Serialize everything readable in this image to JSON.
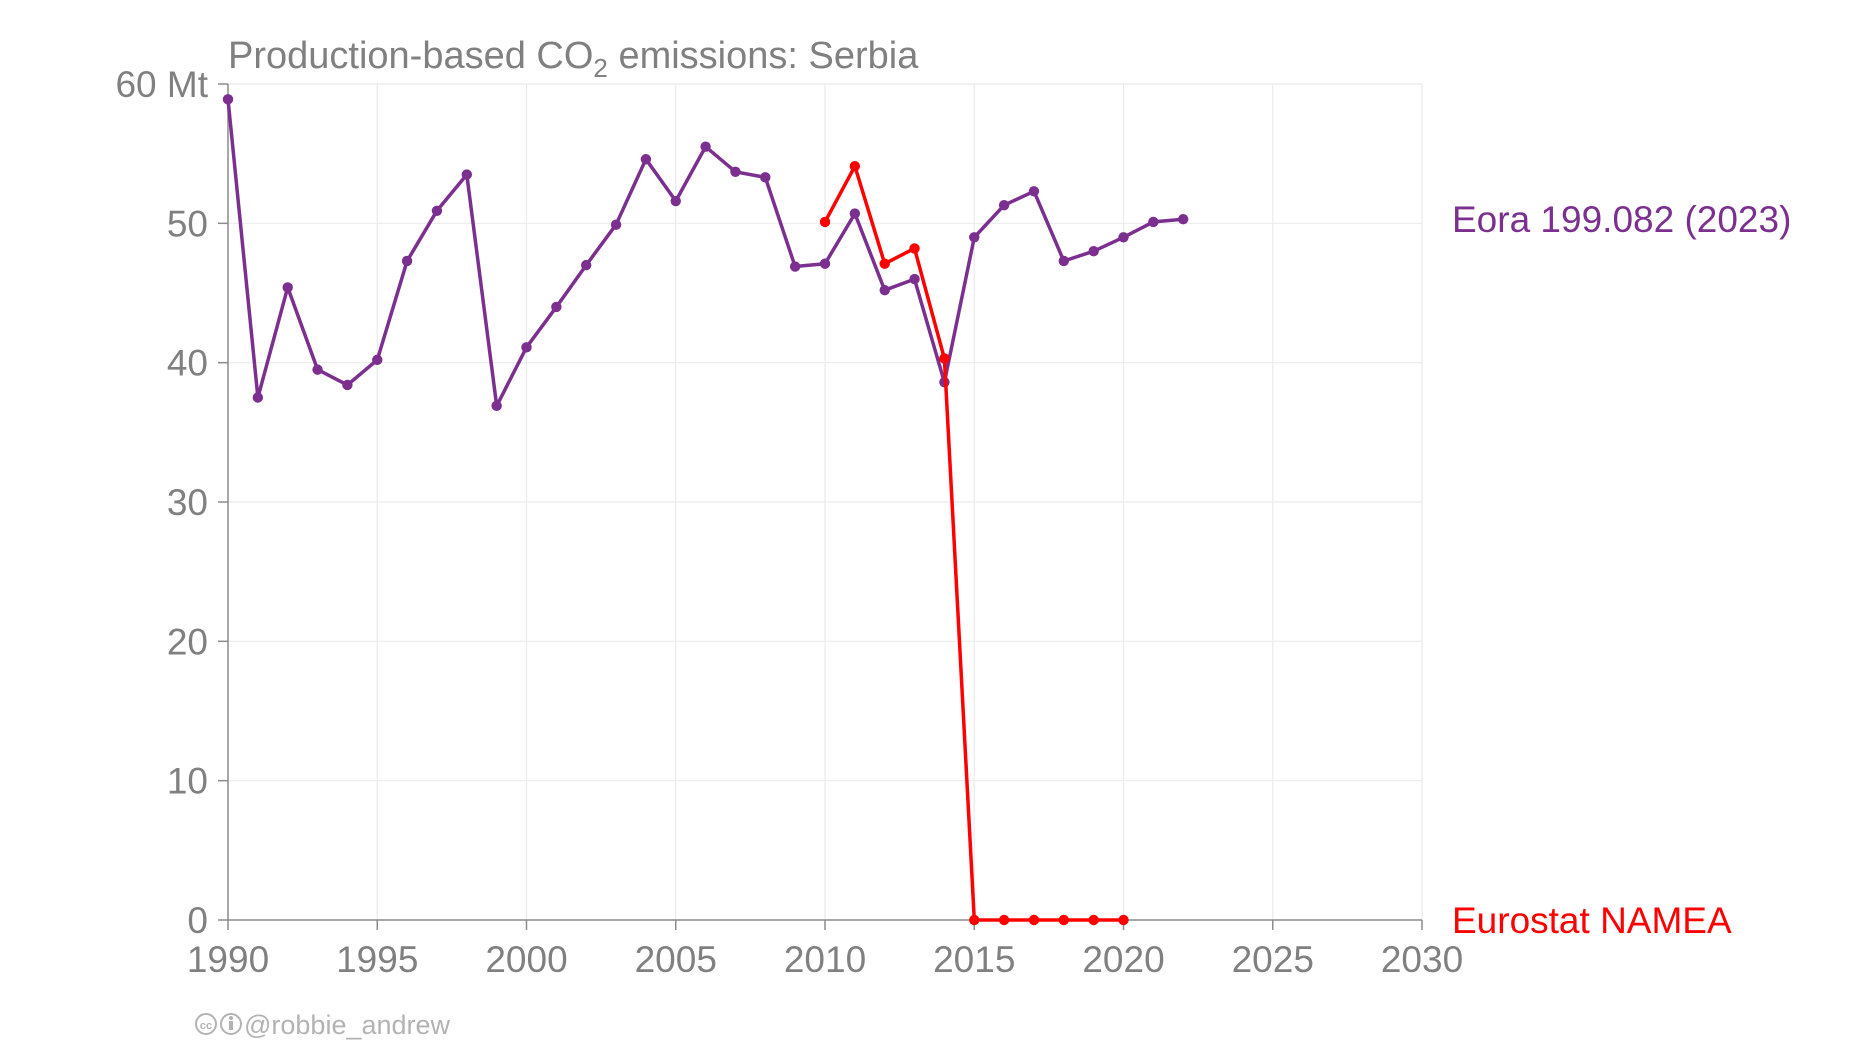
{
  "chart_data": {
    "type": "line",
    "title": "Production-based CO",
    "title_sub": "2",
    "title_rest": " emissions: Serbia",
    "y_unit_label": "60 Mt",
    "xlim": [
      1990,
      2030
    ],
    "ylim": [
      0,
      60
    ],
    "x_ticks": [
      1990,
      1995,
      2000,
      2005,
      2010,
      2015,
      2020,
      2025,
      2030
    ],
    "y_ticks": [
      0,
      10,
      20,
      30,
      40,
      50,
      60
    ],
    "y_tick_labels": [
      "0",
      "10",
      "20",
      "30",
      "40",
      "50",
      "60 Mt"
    ],
    "grid": true,
    "series": [
      {
        "name": "Eora 199.082 (2023)",
        "color": "#7b2f8e",
        "x": [
          1990,
          1991,
          1992,
          1993,
          1994,
          1995,
          1996,
          1997,
          1998,
          1999,
          2000,
          2001,
          2002,
          2003,
          2004,
          2005,
          2006,
          2007,
          2008,
          2009,
          2010,
          2011,
          2012,
          2013,
          2014,
          2015,
          2016,
          2017,
          2018,
          2019,
          2020,
          2021,
          2022
        ],
        "y": [
          58.9,
          37.5,
          45.4,
          39.5,
          38.4,
          40.2,
          47.3,
          50.9,
          53.5,
          36.9,
          41.1,
          44.0,
          47.0,
          49.9,
          54.6,
          51.6,
          55.5,
          53.7,
          53.3,
          46.9,
          47.1,
          50.7,
          45.2,
          46.0,
          38.6,
          49.0,
          51.3,
          52.3,
          47.3,
          48.0,
          49.0,
          50.1,
          50.3
        ],
        "label_at_y": 50.3
      },
      {
        "name": "Eurostat NAMEA",
        "color": "#ff0000",
        "x": [
          2010,
          2011,
          2012,
          2013,
          2014,
          2015,
          2016,
          2017,
          2018,
          2019,
          2020
        ],
        "y": [
          50.1,
          54.1,
          47.1,
          48.2,
          40.3,
          0,
          0,
          0,
          0,
          0,
          0
        ],
        "label_at_y": 0
      }
    ]
  },
  "credit": {
    "cc_icon": "cc-icon",
    "by_icon": "attribution-icon",
    "text": "@robbie_andrew"
  }
}
